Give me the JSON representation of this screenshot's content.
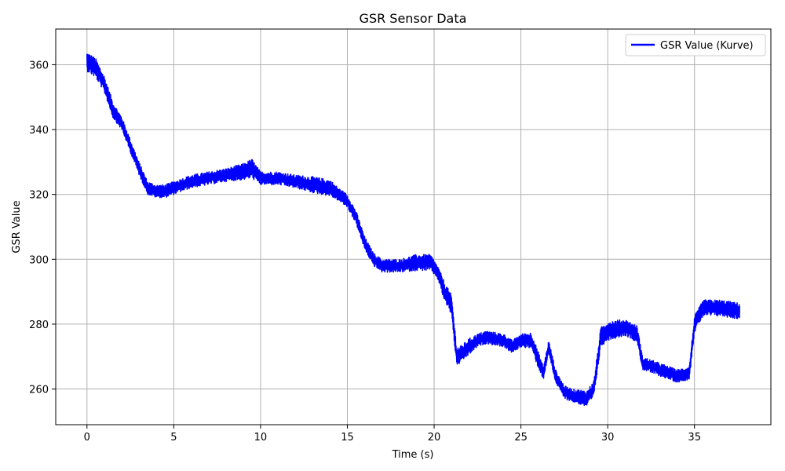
{
  "chart_data": {
    "type": "line",
    "title": "GSR Sensor Data",
    "xlabel": "Time (s)",
    "ylabel": "GSR Value",
    "xlim": [
      -1.8,
      39.4
    ],
    "ylim": [
      249,
      371
    ],
    "xticks": [
      0,
      5,
      10,
      15,
      20,
      25,
      30,
      35
    ],
    "yticks": [
      260,
      280,
      300,
      320,
      340,
      360
    ],
    "grid": true,
    "legend_position": "top-right",
    "series": [
      {
        "name": "GSR Value (Kurve)",
        "color": "#0000ff",
        "x": [
          0,
          0.5,
          1.0,
          1.5,
          2.0,
          2.5,
          3.0,
          3.5,
          4.0,
          4.5,
          5.0,
          6.0,
          7.0,
          8.0,
          9.0,
          9.5,
          10.0,
          11.0,
          12.0,
          13.0,
          14.0,
          14.5,
          15.0,
          15.5,
          16.0,
          16.5,
          17.0,
          18.0,
          19.0,
          19.8,
          20.2,
          20.6,
          21.0,
          21.3,
          21.6,
          22.0,
          22.5,
          23.0,
          24.0,
          24.5,
          25.0,
          25.6,
          26.0,
          26.3,
          26.6,
          27.0,
          27.5,
          28.0,
          28.8,
          29.2,
          29.6,
          30.0,
          31.0,
          31.7,
          32.0,
          33.0,
          34.0,
          34.7,
          35.0,
          35.5,
          36.5,
          37.6
        ],
        "y": [
          361,
          359,
          354,
          346,
          342,
          335,
          328,
          322,
          321,
          321,
          322,
          324,
          325,
          326,
          327,
          328,
          325,
          325,
          324,
          323,
          322,
          320,
          318,
          313,
          305,
          300,
          298,
          298,
          299,
          299,
          296,
          290,
          286,
          270,
          271,
          273,
          275,
          276,
          275,
          273,
          275,
          275,
          269,
          265,
          273,
          264,
          259,
          258,
          257,
          260,
          276,
          278,
          279,
          277,
          268,
          266,
          264,
          265,
          280,
          285,
          285,
          284
        ],
        "noise": [
          3,
          3,
          2.5,
          2.5,
          2,
          2,
          2,
          2,
          2,
          2,
          2,
          2,
          2,
          2,
          2.5,
          3,
          2,
          2,
          2,
          2.5,
          2.5,
          2,
          2,
          2,
          2,
          2,
          2,
          2,
          2.5,
          2.5,
          2,
          3,
          3,
          3,
          2.5,
          2.5,
          2,
          2,
          2,
          2,
          2,
          2.5,
          2.5,
          2,
          2,
          2,
          2,
          2,
          2.5,
          2.5,
          3,
          3,
          2.5,
          2.5,
          2,
          2,
          2,
          2,
          2.5,
          2.5,
          2.5,
          2.5
        ]
      }
    ]
  }
}
